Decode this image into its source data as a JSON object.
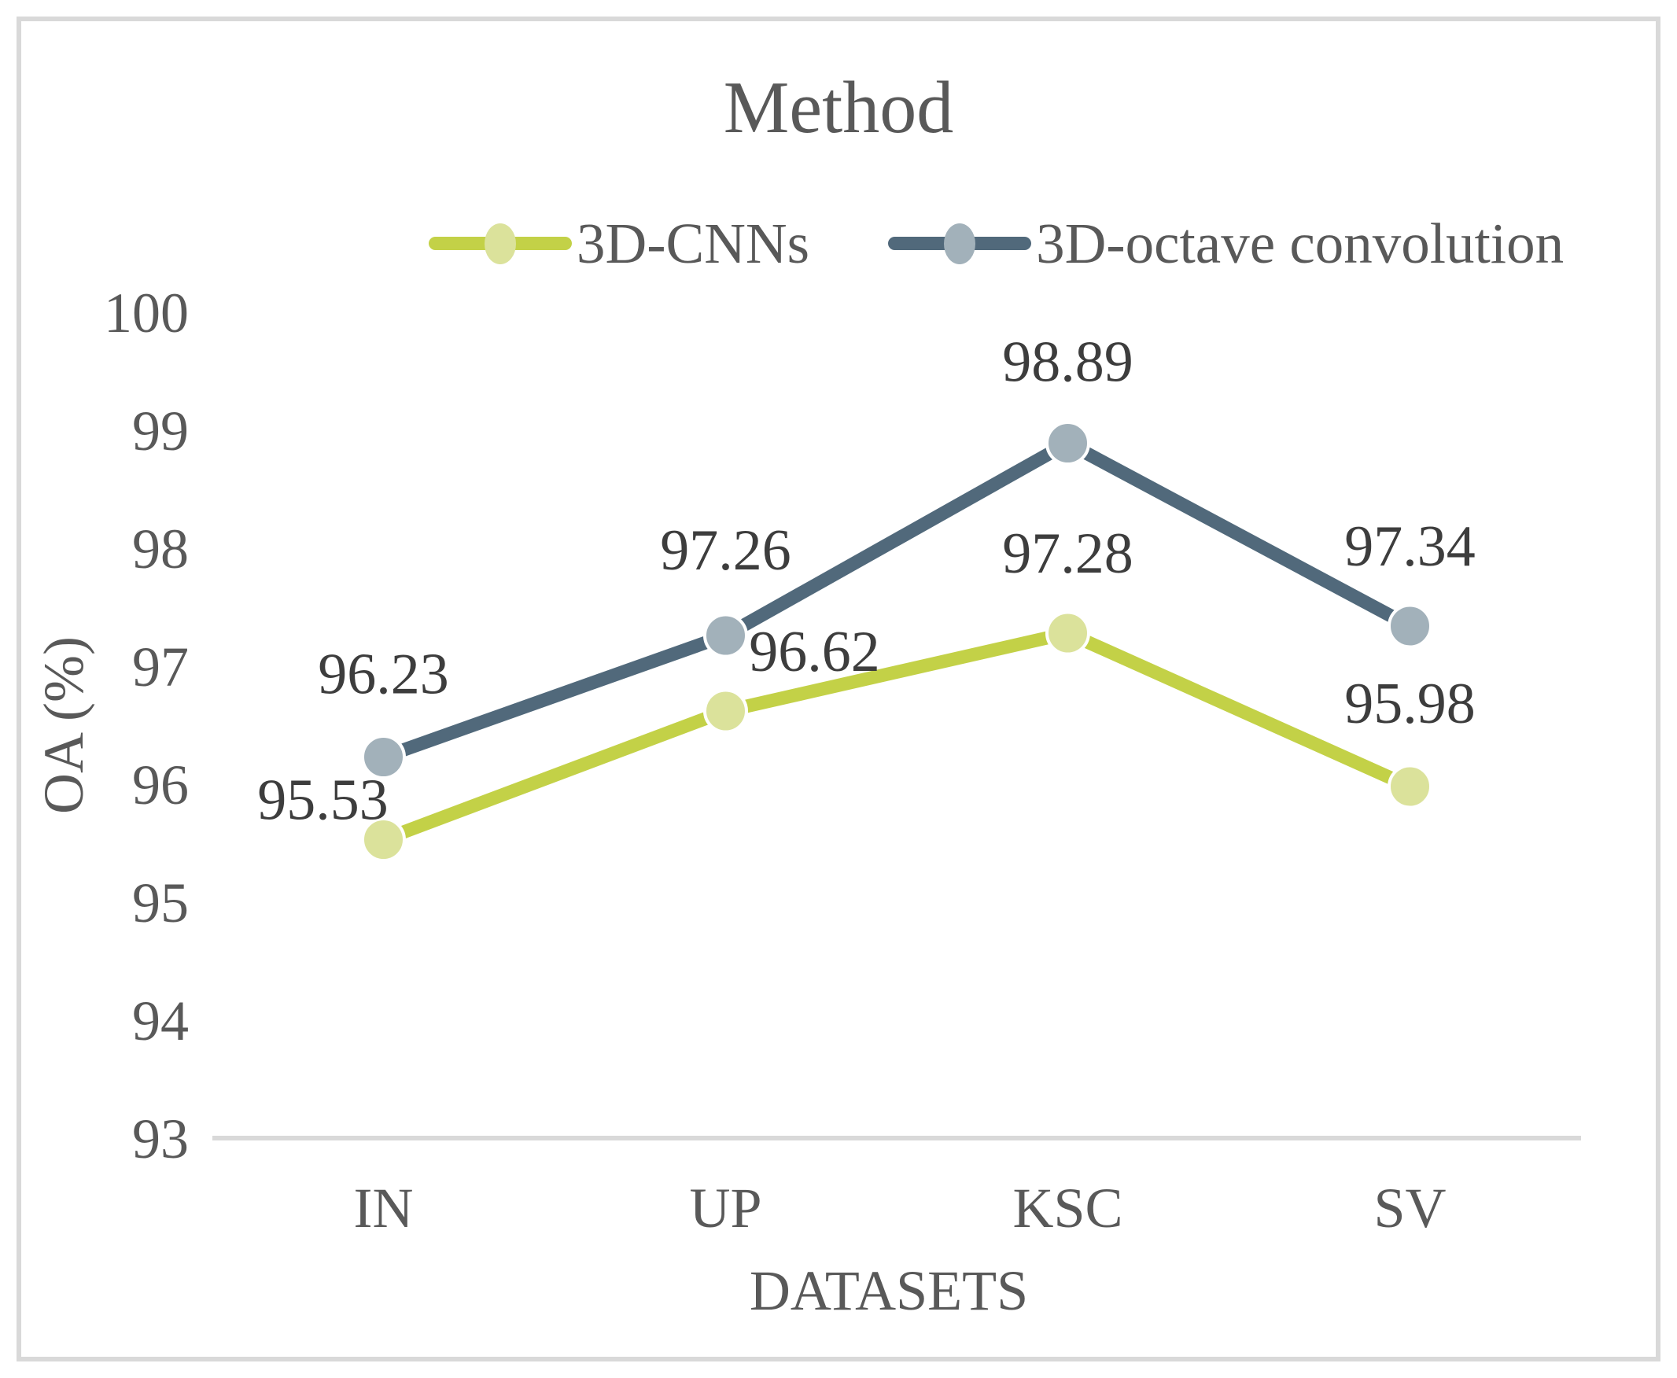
{
  "title": "Method",
  "chart_data": {
    "type": "line",
    "title": "Method",
    "categories": [
      "IN",
      "UP",
      "KSC",
      "SV"
    ],
    "series": [
      {
        "name": "3D-CNNs",
        "values": [
          95.53,
          96.62,
          97.28,
          95.98
        ],
        "line_color": "#c3d147",
        "marker_color": "#dbe29b"
      },
      {
        "name": "3D-octave convolution",
        "values": [
          96.23,
          97.26,
          98.89,
          97.34
        ],
        "line_color": "#51697b",
        "marker_color": "#a2b1ba"
      }
    ],
    "xlabel": "DATASETS",
    "ylabel": "OA (%)",
    "ylim": [
      93,
      100
    ],
    "yticks": [
      93,
      94,
      95,
      96,
      97,
      98,
      99,
      100
    ],
    "grid": false,
    "legend_position": "top",
    "data_labels": true,
    "label_decimals": 2,
    "label_offsets": [
      [
        [
          -77,
          -52
        ],
        [
          113,
          -77
        ],
        [
          0,
          -103
        ],
        [
          0,
          -107
        ]
      ],
      [
        [
          0,
          -107
        ],
        [
          0,
          -110
        ],
        [
          0,
          -105
        ],
        [
          0,
          -103
        ]
      ]
    ],
    "colors": {
      "axis_line": "#d9d9d9",
      "frame_border": "#d9d9d9",
      "tick_text": "#595959",
      "data_label_text": "#3d3d3d"
    }
  }
}
